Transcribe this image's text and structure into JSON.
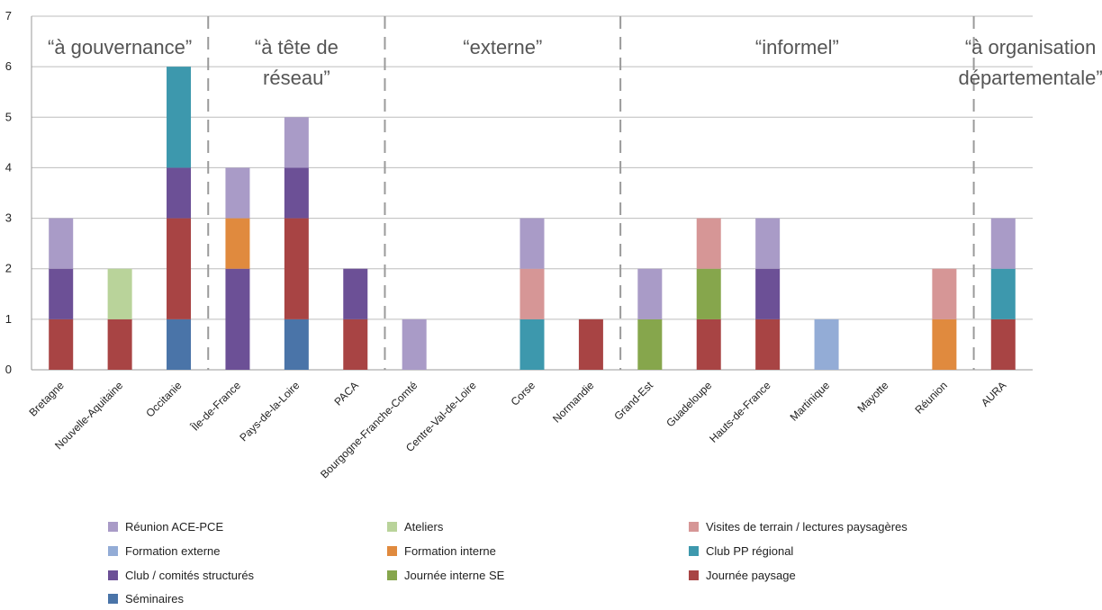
{
  "chart_data": {
    "type": "bar",
    "stacked": true,
    "title": "",
    "xlabel": "",
    "ylabel": "",
    "ylim": [
      0,
      7
    ],
    "yticks": [
      0,
      1,
      2,
      3,
      4,
      5,
      6,
      7
    ],
    "grid": true,
    "legend_position": "bottom",
    "categories": [
      "Bretagne",
      "Nouvelle-Aquitaine",
      "Occitanie",
      "Île-de-France",
      "Pays-de-la-Loire",
      "PACA",
      "Bourgogne-Franche-Comté",
      "Centre-Val-de-Loire",
      "Corse",
      "Normandie",
      "Grand-Est",
      "Guadeloupe",
      "Hauts-de-France",
      "Martinique",
      "Mayotte",
      "Réunion",
      "AURA"
    ],
    "series": [
      {
        "name": "Séminaires",
        "color": "#4a74a8",
        "values": [
          0,
          0,
          1,
          0,
          1,
          0,
          0,
          0,
          0,
          0,
          0,
          0,
          0,
          0,
          0,
          0,
          0
        ]
      },
      {
        "name": "Journée paysage",
        "color": "#a84444",
        "values": [
          1,
          1,
          2,
          0,
          2,
          1,
          0,
          0,
          0,
          1,
          0,
          1,
          1,
          0,
          0,
          0,
          1
        ]
      },
      {
        "name": "Journée interne SE",
        "color": "#86a64c",
        "values": [
          0,
          0,
          0,
          0,
          0,
          0,
          0,
          0,
          0,
          0,
          1,
          1,
          0,
          0,
          0,
          0,
          0
        ]
      },
      {
        "name": "Club / comités structurés",
        "color": "#6c5096",
        "values": [
          1,
          0,
          1,
          2,
          1,
          1,
          0,
          0,
          0,
          0,
          0,
          0,
          1,
          0,
          0,
          0,
          0
        ]
      },
      {
        "name": "Club PP régional",
        "color": "#3d98ad",
        "values": [
          0,
          0,
          2,
          0,
          0,
          0,
          0,
          0,
          1,
          0,
          0,
          0,
          0,
          0,
          0,
          0,
          1
        ]
      },
      {
        "name": "Formation interne",
        "color": "#e08a3e",
        "values": [
          0,
          0,
          0,
          1,
          0,
          0,
          0,
          0,
          0,
          0,
          0,
          0,
          0,
          0,
          0,
          1,
          0
        ]
      },
      {
        "name": "Formation externe",
        "color": "#93acd6",
        "values": [
          0,
          0,
          0,
          0,
          0,
          0,
          0,
          0,
          0,
          0,
          0,
          0,
          0,
          1,
          0,
          0,
          0
        ]
      },
      {
        "name": "Visites de terrain / lectures paysagères",
        "color": "#d69696",
        "values": [
          0,
          0,
          0,
          0,
          0,
          0,
          0,
          0,
          1,
          0,
          0,
          1,
          0,
          0,
          0,
          1,
          0
        ]
      },
      {
        "name": "Ateliers",
        "color": "#b9d39a",
        "values": [
          0,
          1,
          0,
          0,
          0,
          0,
          0,
          0,
          0,
          0,
          0,
          0,
          0,
          0,
          0,
          0,
          0
        ]
      },
      {
        "name": "Réunion ACE-PCE",
        "color": "#a99bc7",
        "values": [
          1,
          0,
          0,
          1,
          1,
          0,
          1,
          0,
          1,
          0,
          1,
          0,
          1,
          0,
          0,
          0,
          1
        ]
      }
    ],
    "groups": [
      {
        "label_lines": [
          "“à gouvernance”"
        ],
        "first": 0,
        "last": 2
      },
      {
        "label_lines": [
          "“à tête de",
          "réseau”"
        ],
        "first": 3,
        "last": 5
      },
      {
        "label_lines": [
          "“externe”"
        ],
        "first": 6,
        "last": 9
      },
      {
        "label_lines": [
          "“informel”"
        ],
        "first": 10,
        "last": 15
      },
      {
        "label_lines": [
          "“à organisation",
          "départementale”"
        ],
        "first": 16,
        "last": 16
      }
    ],
    "legend_order": [
      "Réunion ACE-PCE",
      "Ateliers",
      "Visites de terrain / lectures paysagères",
      "Formation externe",
      "Formation interne",
      "Club PP régional",
      "Club / comités structurés",
      "Journée interne SE",
      "Journée paysage",
      "Séminaires"
    ]
  }
}
